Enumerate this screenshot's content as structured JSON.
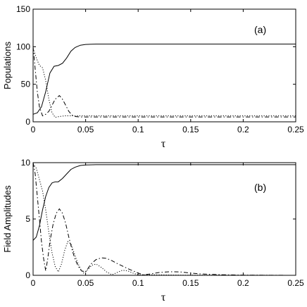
{
  "chart_data": [
    {
      "type": "line",
      "panel_label": "(a)",
      "xlabel": "τ",
      "ylabel": "Populations",
      "xlim": [
        0,
        0.25
      ],
      "ylim": [
        0,
        150
      ],
      "xticks": [
        0,
        0.05,
        0.1,
        0.15,
        0.2,
        0.25
      ],
      "xtick_labels": [
        "0",
        "0.05",
        "0.1",
        "0.15",
        "0.2",
        "0.25"
      ],
      "yticks": [
        0,
        50,
        100,
        150
      ],
      "ytick_labels": [
        "0",
        "50",
        "100",
        "150"
      ],
      "grid": false,
      "series": [
        {
          "style": "solid",
          "x": [
            0,
            0.004,
            0.008,
            0.012,
            0.016,
            0.02,
            0.024,
            0.028,
            0.032,
            0.036,
            0.04,
            0.045,
            0.05,
            0.06,
            0.08,
            0.1,
            0.15,
            0.2,
            0.25
          ],
          "y": [
            10,
            12,
            20,
            40,
            65,
            74,
            75,
            78,
            85,
            94,
            99,
            102,
            103,
            103.5,
            103.5,
            103.5,
            103.5,
            103.5,
            103.5
          ]
        },
        {
          "style": "dotted",
          "x": [
            0,
            0.003,
            0.006,
            0.009,
            0.012,
            0.015,
            0.018,
            0.021,
            0.025,
            0.03,
            0.035,
            0.04,
            0.06,
            0.1,
            0.25
          ],
          "y": [
            98,
            85,
            75,
            72,
            55,
            30,
            12,
            6,
            7,
            8,
            8,
            8,
            8,
            8,
            8
          ]
        },
        {
          "style": "dashdot",
          "x": [
            0,
            0.002,
            0.004,
            0.006,
            0.009,
            0.012,
            0.015,
            0.018,
            0.021,
            0.025,
            0.028,
            0.031,
            0.034,
            0.037,
            0.04,
            0.045,
            0.06,
            0.1,
            0.25
          ],
          "y": [
            100,
            70,
            40,
            20,
            8,
            10,
            14,
            22,
            30,
            35,
            30,
            22,
            14,
            9,
            7,
            6.5,
            6.5,
            6.5,
            6.5
          ]
        }
      ]
    },
    {
      "type": "line",
      "panel_label": "(b)",
      "xlabel": "τ",
      "ylabel": "Field Amplitudes",
      "xlim": [
        0,
        0.25
      ],
      "ylim": [
        0,
        10
      ],
      "xticks": [
        0,
        0.05,
        0.1,
        0.15,
        0.2,
        0.25
      ],
      "xtick_labels": [
        "0",
        "0.05",
        "0.1",
        "0.15",
        "0.2",
        "0.25"
      ],
      "yticks": [
        0,
        5,
        10
      ],
      "ytick_labels": [
        "0",
        "5",
        "10"
      ],
      "grid": false,
      "series": [
        {
          "style": "solid",
          "x": [
            0,
            0.003,
            0.006,
            0.009,
            0.012,
            0.015,
            0.018,
            0.021,
            0.024,
            0.028,
            0.032,
            0.036,
            0.04,
            0.045,
            0.05,
            0.06,
            0.08,
            0.1,
            0.15,
            0.2,
            0.25
          ],
          "y": [
            3.1,
            3.4,
            4.4,
            5.8,
            7.0,
            7.8,
            8.2,
            8.3,
            8.3,
            8.6,
            9.0,
            9.4,
            9.6,
            9.75,
            9.8,
            9.82,
            9.82,
            9.82,
            9.82,
            9.82,
            9.82
          ]
        },
        {
          "style": "dotted",
          "x": [
            0,
            0.003,
            0.006,
            0.009,
            0.012,
            0.015,
            0.018,
            0.021,
            0.024,
            0.027,
            0.03,
            0.033,
            0.036,
            0.039,
            0.042,
            0.045,
            0.048,
            0.052,
            0.056,
            0.06,
            0.065,
            0.07,
            0.075,
            0.08,
            0.085,
            0.09,
            0.095,
            0.1,
            0.11,
            0.14,
            0.25
          ],
          "y": [
            9.9,
            9.5,
            8.5,
            7.5,
            5.8,
            3.8,
            2.0,
            0.8,
            0.3,
            1.0,
            2.2,
            3.0,
            2.8,
            2.0,
            1.2,
            0.6,
            0.2,
            0.5,
            0.9,
            1.0,
            0.7,
            0.3,
            0.05,
            0.25,
            0.45,
            0.4,
            0.2,
            0.05,
            0.05,
            0.02,
            0.0
          ]
        },
        {
          "style": "dashdot",
          "x": [
            0,
            0.002,
            0.004,
            0.006,
            0.008,
            0.01,
            0.012,
            0.014,
            0.016,
            0.019,
            0.022,
            0.025,
            0.028,
            0.031,
            0.034,
            0.037,
            0.04,
            0.043,
            0.046,
            0.05,
            0.055,
            0.06,
            0.065,
            0.07,
            0.075,
            0.08,
            0.09,
            0.1,
            0.105,
            0.11,
            0.12,
            0.13,
            0.14,
            0.15,
            0.16,
            0.18,
            0.2,
            0.25
          ],
          "y": [
            10,
            9.0,
            7.0,
            5.0,
            3.0,
            1.5,
            0.4,
            1.5,
            3.0,
            4.5,
            5.5,
            5.9,
            5.5,
            4.6,
            3.4,
            2.3,
            1.4,
            0.8,
            0.4,
            0.3,
            1.0,
            1.4,
            1.55,
            1.5,
            1.3,
            1.05,
            0.6,
            0.2,
            0.05,
            0.1,
            0.25,
            0.32,
            0.3,
            0.2,
            0.12,
            0.05,
            0.02,
            0.0
          ]
        }
      ]
    }
  ]
}
